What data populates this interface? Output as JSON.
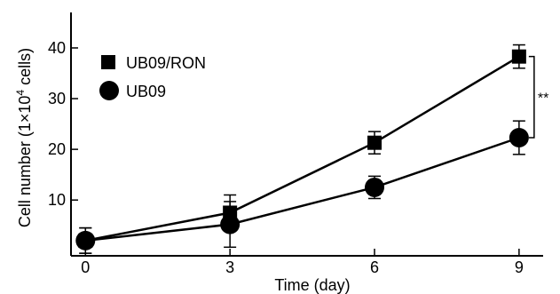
{
  "chart_data": {
    "type": "line",
    "title": "",
    "xlabel": "Time (day)",
    "ylabel_parts": [
      "Cell number (1×10",
      "4",
      " cells)"
    ],
    "x": [
      0,
      3,
      6,
      9
    ],
    "x_ticks": [
      "0",
      "3",
      "6",
      "9"
    ],
    "y_ticks": [
      "10",
      "20",
      "30",
      "40"
    ],
    "xlim": [
      -0.3,
      9.5
    ],
    "ylim": [
      -1,
      47
    ],
    "series": [
      {
        "name": "UB09/RON",
        "marker": "square",
        "values": [
          2.0,
          7.5,
          21.3,
          38.3
        ],
        "err": [
          2.5,
          3.5,
          2.2,
          2.3
        ]
      },
      {
        "name": "UB09",
        "marker": "circle",
        "values": [
          2.0,
          5.2,
          12.5,
          22.3
        ],
        "err": [
          2.5,
          4.5,
          2.2,
          3.3
        ]
      }
    ],
    "annotation": "**",
    "legend": "top-left",
    "grid": false
  }
}
